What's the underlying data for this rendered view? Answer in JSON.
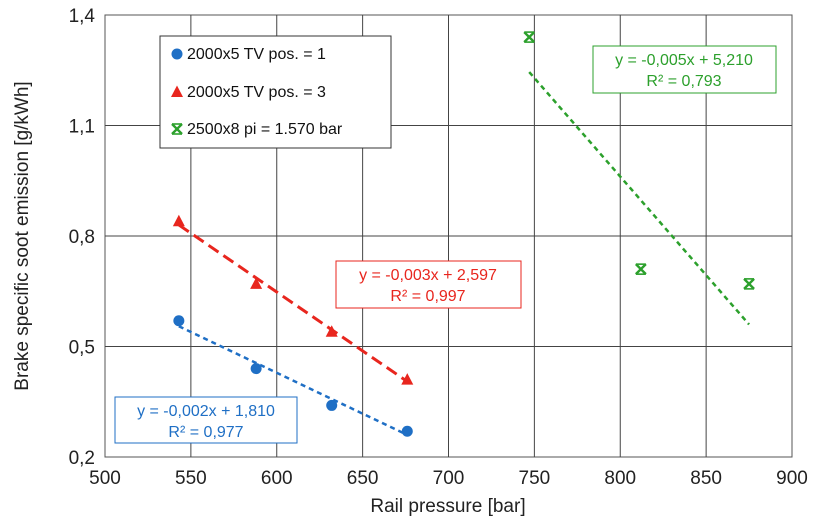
{
  "chart_data": {
    "type": "scatter",
    "title": "",
    "xlabel": "Rail pressure [bar]",
    "ylabel": "Brake specific soot emission [g/kWh]",
    "xlim": [
      500,
      900
    ],
    "ylim": [
      0.2,
      1.4
    ],
    "grid": true,
    "x_ticks": [
      500,
      550,
      600,
      650,
      700,
      750,
      800,
      850,
      900
    ],
    "x_tick_labels": [
      "500",
      "550",
      "600",
      "650",
      "700",
      "750",
      "800",
      "850",
      "900"
    ],
    "y_ticks": [
      0.2,
      0.5,
      0.8,
      1.1,
      1.4
    ],
    "y_tick_labels": [
      "0,2",
      "0,5",
      "0,8",
      "1,1",
      "1,4"
    ],
    "legend_position": "top-left",
    "series": [
      {
        "name": "2000x5 TV pos. = 1",
        "marker": "circle",
        "color": "#1f6fc5",
        "x": [
          543,
          588,
          632,
          676
        ],
        "y": [
          0.57,
          0.44,
          0.34,
          0.27
        ],
        "trendline": {
          "equation": "y = -0,002x + 1,810",
          "r2": "R² = 0,977",
          "x": [
            543,
            676
          ],
          "y": [
            0.555,
            0.26
          ]
        }
      },
      {
        "name": "2000x5 TV pos. = 3",
        "marker": "triangle",
        "color": "#e8261e",
        "x": [
          543,
          588,
          632,
          676
        ],
        "y": [
          0.84,
          0.67,
          0.54,
          0.41
        ],
        "trendline": {
          "equation": "y = -0,003x + 2,597",
          "r2": "R² = 0,997",
          "x": [
            543,
            676
          ],
          "y": [
            0.83,
            0.405
          ]
        }
      },
      {
        "name": "2500x8 pi = 1.570 bar",
        "marker": "x-star",
        "color": "#2ca02c",
        "x": [
          747,
          812,
          875
        ],
        "y": [
          1.34,
          0.71,
          0.67
        ],
        "trendline": {
          "equation": "y = -0,005x + 5,210",
          "r2": "R² = 0,793",
          "x": [
            747,
            875
          ],
          "y": [
            1.245,
            0.56
          ]
        }
      }
    ]
  }
}
